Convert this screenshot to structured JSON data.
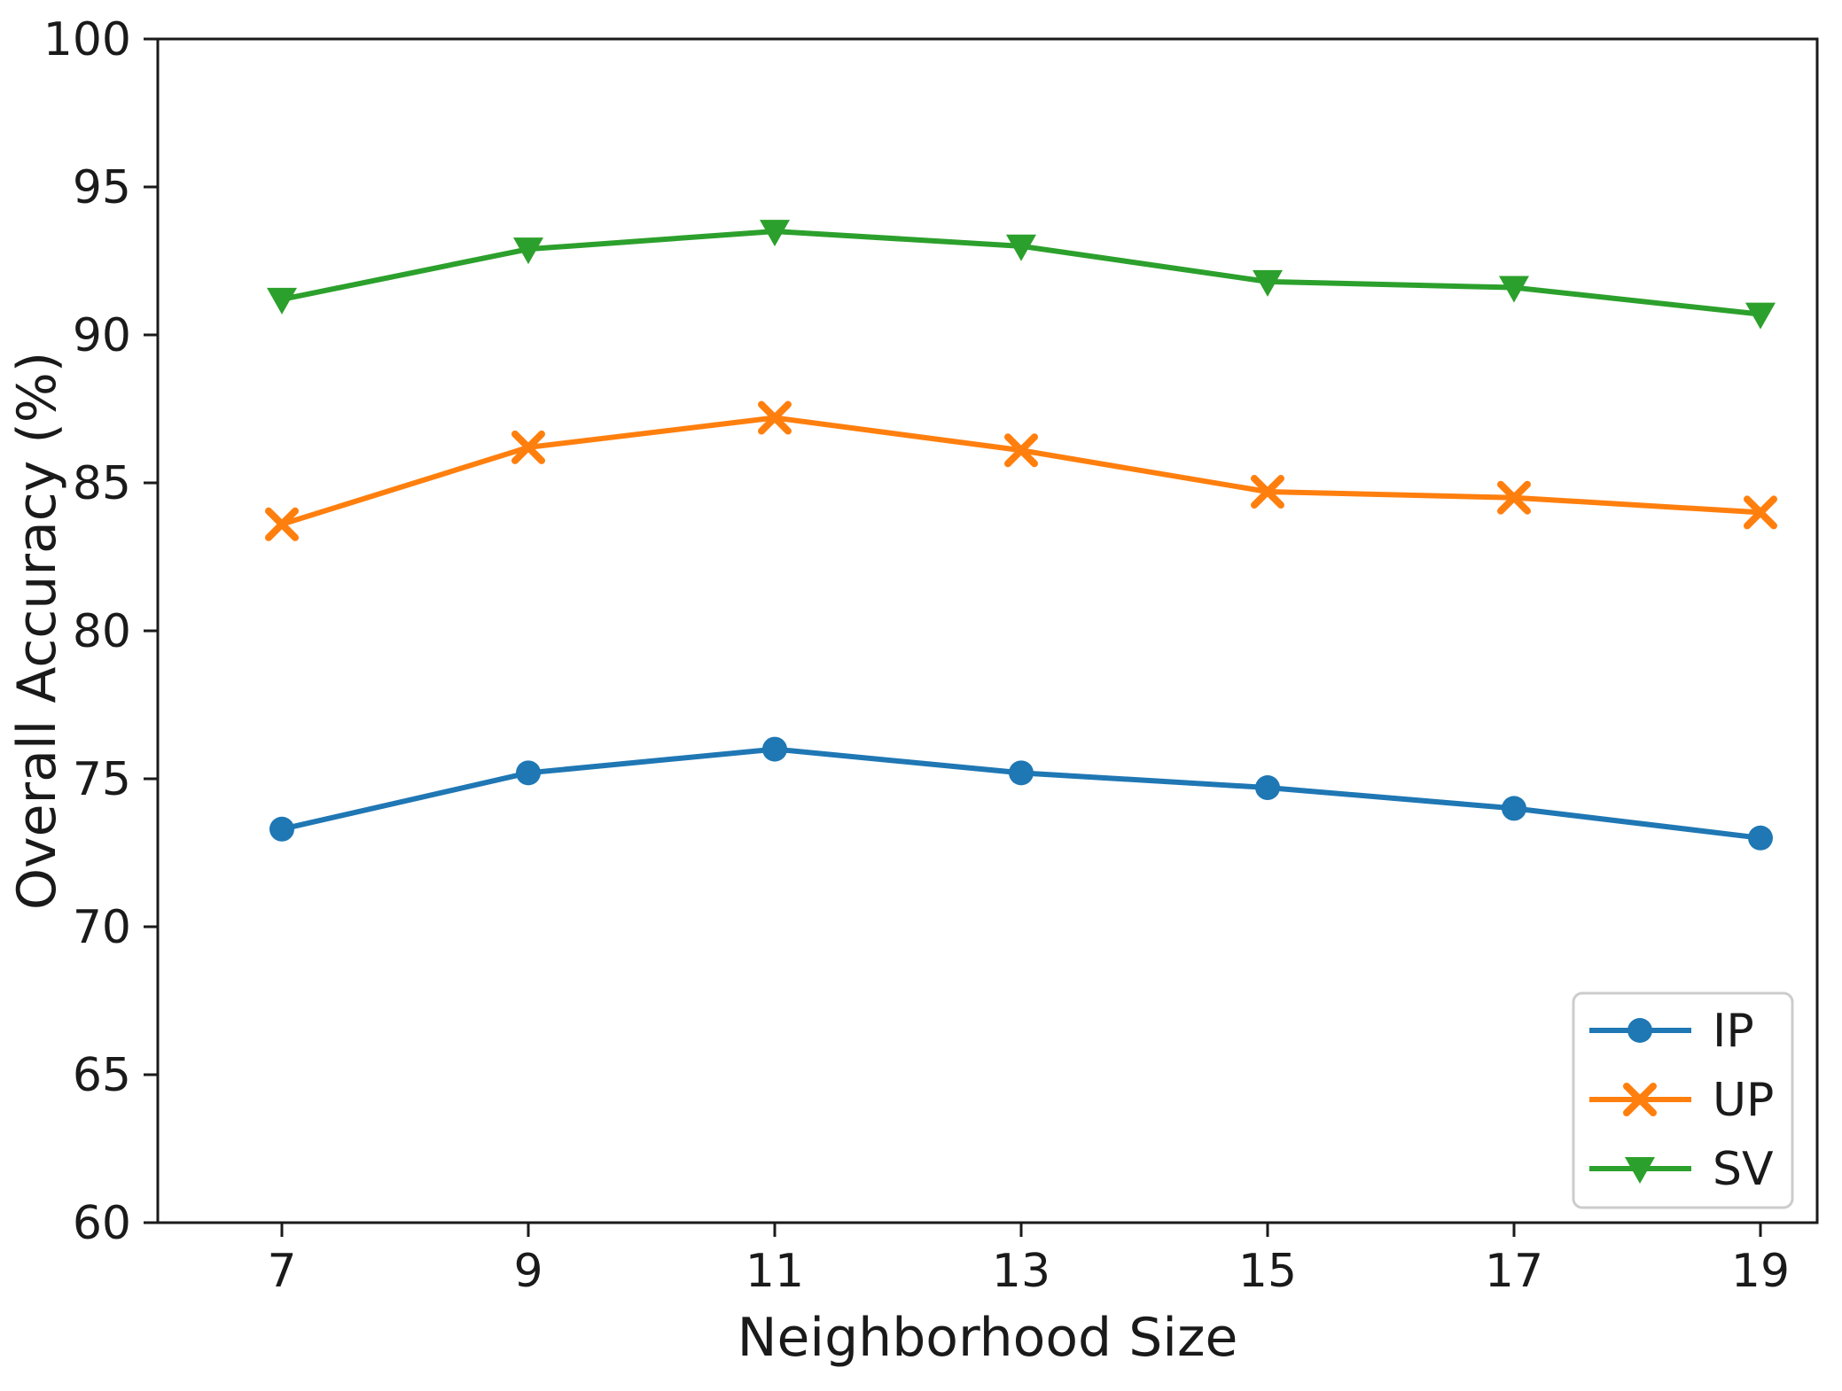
{
  "chart_data": {
    "type": "line",
    "title": "",
    "xlabel": "Neighborhood Size",
    "ylabel": "Overall Accuracy (%)",
    "x": [
      7,
      9,
      11,
      13,
      15,
      17,
      19
    ],
    "yticks": [
      60,
      65,
      70,
      75,
      80,
      85,
      90,
      95,
      100
    ],
    "ylim": [
      60,
      100
    ],
    "xlim_data": [
      7,
      19
    ],
    "grid": false,
    "background": "#ffffff",
    "axis_color": "#1a1a1a",
    "legend": {
      "position": "lower-right",
      "border_color": "#cccccc",
      "fill_color": "#ffffff"
    },
    "series": [
      {
        "name": "IP",
        "color": "#1f77b4",
        "marker": "circle",
        "values": [
          73.3,
          75.2,
          76.0,
          75.2,
          74.7,
          74.0,
          73.0
        ]
      },
      {
        "name": "UP",
        "color": "#ff7f0e",
        "marker": "x",
        "values": [
          83.6,
          86.2,
          87.2,
          86.1,
          84.7,
          84.5,
          84.0
        ]
      },
      {
        "name": "SV",
        "color": "#2ca02c",
        "marker": "triangle-down",
        "values": [
          91.2,
          92.9,
          93.5,
          93.0,
          91.8,
          91.6,
          90.7
        ]
      }
    ]
  }
}
